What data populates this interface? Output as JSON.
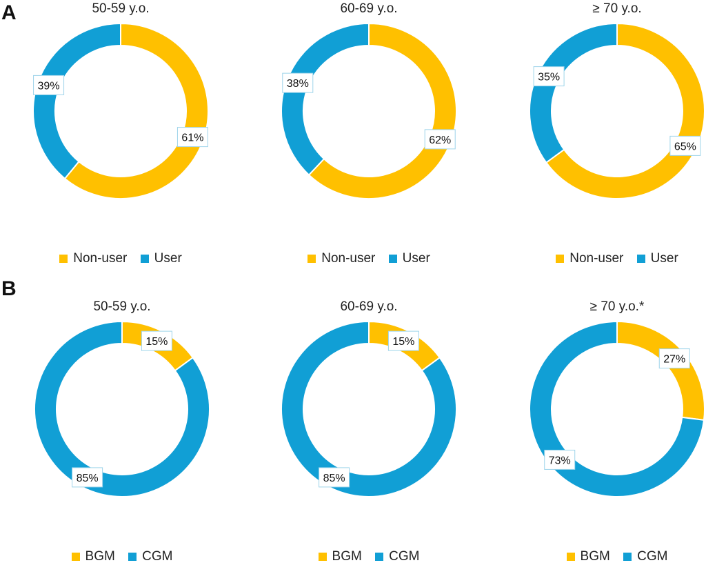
{
  "colors": {
    "primary": "#FFC000",
    "secondary": "#119FD5"
  },
  "panels": [
    {
      "letter": "A",
      "charts": [
        {
          "title": "50-59 y.o.",
          "legend": [
            {
              "label": "Non-user",
              "color": "#FFC000"
            },
            {
              "label": "User",
              "color": "#119FD5"
            }
          ]
        },
        {
          "title": "60-69 y.o.",
          "legend": [
            {
              "label": "Non-user",
              "color": "#FFC000"
            },
            {
              "label": "User",
              "color": "#119FD5"
            }
          ]
        },
        {
          "title": "≥ 70 y.o.",
          "legend": [
            {
              "label": "Non-user",
              "color": "#FFC000"
            },
            {
              "label": "User",
              "color": "#119FD5"
            }
          ]
        }
      ]
    },
    {
      "letter": "B",
      "charts": [
        {
          "title": "50-59 y.o.",
          "legend": [
            {
              "label": "BGM",
              "color": "#FFC000"
            },
            {
              "label": "CGM",
              "color": "#119FD5"
            }
          ]
        },
        {
          "title": "60-69 y.o.",
          "legend": [
            {
              "label": "BGM",
              "color": "#FFC000"
            },
            {
              "label": "CGM",
              "color": "#119FD5"
            }
          ]
        },
        {
          "title": "≥ 70 y.o.*",
          "legend": [
            {
              "label": "BGM",
              "color": "#FFC000"
            },
            {
              "label": "CGM",
              "color": "#119FD5"
            }
          ]
        }
      ]
    }
  ],
  "chart_data": [
    {
      "type": "pie",
      "donut": true,
      "panel": "A",
      "title": "50-59 y.o.",
      "categories": [
        "Non-user",
        "User"
      ],
      "values": [
        61,
        39
      ],
      "labels": [
        "61%",
        "39%"
      ],
      "legend_position": "bottom"
    },
    {
      "type": "pie",
      "donut": true,
      "panel": "A",
      "title": "60-69 y.o.",
      "categories": [
        "Non-user",
        "User"
      ],
      "values": [
        62,
        38
      ],
      "labels": [
        "62%",
        "38%"
      ],
      "legend_position": "bottom"
    },
    {
      "type": "pie",
      "donut": true,
      "panel": "A",
      "title": "≥ 70 y.o.",
      "categories": [
        "Non-user",
        "User"
      ],
      "values": [
        65,
        35
      ],
      "labels": [
        "65%",
        "35%"
      ],
      "legend_position": "bottom"
    },
    {
      "type": "pie",
      "donut": true,
      "panel": "B",
      "title": "50-59 y.o.",
      "categories": [
        "BGM",
        "CGM"
      ],
      "values": [
        15,
        85
      ],
      "labels": [
        "15%",
        "85%"
      ],
      "legend_position": "bottom"
    },
    {
      "type": "pie",
      "donut": true,
      "panel": "B",
      "title": "60-69 y.o.",
      "categories": [
        "BGM",
        "CGM"
      ],
      "values": [
        15,
        85
      ],
      "labels": [
        "15%",
        "85%"
      ],
      "legend_position": "bottom"
    },
    {
      "type": "pie",
      "donut": true,
      "panel": "B",
      "title": "≥ 70 y.o.*",
      "categories": [
        "BGM",
        "CGM"
      ],
      "values": [
        27,
        73
      ],
      "labels": [
        "27%",
        "73%"
      ],
      "legend_position": "bottom"
    }
  ]
}
